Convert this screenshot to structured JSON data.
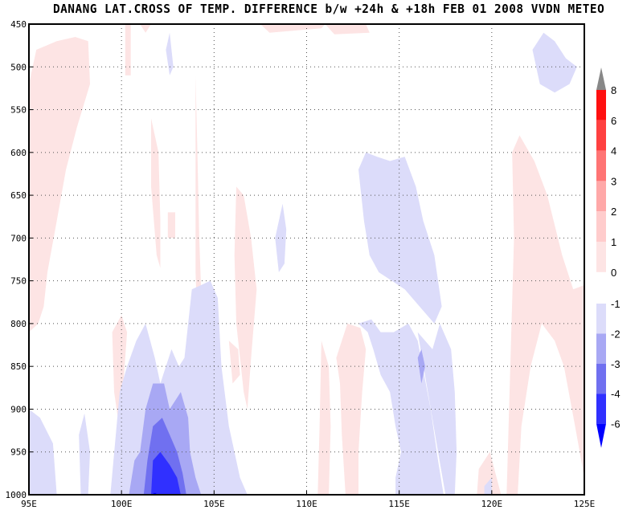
{
  "chart_data": {
    "type": "heatmap",
    "title": "DANANG LAT.CROSS OF TEMP. DIFFERENCE b/w +24h & +18h FEB 01 2008 VVDN METEO",
    "x_ticks": [
      "95E",
      "100E",
      "105E",
      "110E",
      "115E",
      "120E",
      "125E"
    ],
    "x_range": [
      95,
      125
    ],
    "y_ticks": [
      "450",
      "500",
      "550",
      "600",
      "650",
      "700",
      "750",
      "800",
      "850",
      "900",
      "950",
      "1000"
    ],
    "y_range": [
      450,
      1000
    ],
    "y_inverted": true,
    "grid": true,
    "levels_positive": [
      {
        "label": "0",
        "color": "#fde4e4"
      },
      {
        "label": "1",
        "color": "#ffcccc"
      },
      {
        "label": "2",
        "color": "#ffa8a8"
      },
      {
        "label": "3",
        "color": "#ff7474"
      },
      {
        "label": "4",
        "color": "#ff4040"
      },
      {
        "label": "6",
        "color": "#ff1010"
      },
      {
        "label": "8",
        "color": "#888888"
      }
    ],
    "levels_negative": [
      {
        "label": "-1",
        "color": "#dcdcfa"
      },
      {
        "label": "-2",
        "color": "#a8a8f4"
      },
      {
        "label": "-3",
        "color": "#7070f0"
      },
      {
        "label": "-4",
        "color": "#3030ff"
      },
      {
        "label": "-6",
        "color": "#0000ff"
      }
    ],
    "regions": [
      {
        "level": 0,
        "sign": "pos",
        "points": [
          [
            95,
            520
          ],
          [
            95.4,
            480
          ],
          [
            96.5,
            470
          ],
          [
            97.5,
            465
          ],
          [
            98.2,
            470
          ],
          [
            98.3,
            520
          ],
          [
            97.6,
            570
          ],
          [
            97,
            620
          ],
          [
            96.5,
            680
          ],
          [
            96,
            740
          ],
          [
            95.8,
            780
          ],
          [
            95.5,
            800
          ],
          [
            95,
            810
          ]
        ]
      },
      {
        "level": 0,
        "sign": "pos",
        "points": [
          [
            100.2,
            450
          ],
          [
            100.5,
            450
          ],
          [
            100.5,
            510
          ],
          [
            100.2,
            510
          ]
        ]
      },
      {
        "level": 0,
        "sign": "pos",
        "points": [
          [
            101,
            450
          ],
          [
            101.6,
            450
          ],
          [
            101.3,
            460
          ]
        ]
      },
      {
        "level": 0,
        "sign": "pos",
        "points": [
          [
            101.6,
            560
          ],
          [
            102,
            600
          ],
          [
            102.1,
            680
          ],
          [
            102.1,
            735
          ],
          [
            101.9,
            720
          ],
          [
            101.6,
            640
          ]
        ]
      },
      {
        "level": 0,
        "sign": "pos",
        "points": [
          [
            102.5,
            670
          ],
          [
            102.9,
            670
          ],
          [
            102.9,
            700
          ],
          [
            102.5,
            700
          ]
        ]
      },
      {
        "level": 0,
        "sign": "pos",
        "points": [
          [
            104,
            510
          ],
          [
            104.1,
            600
          ],
          [
            104.2,
            700
          ],
          [
            104.3,
            760
          ],
          [
            104.1,
            800
          ],
          [
            104,
            740
          ]
        ]
      },
      {
        "level": 0,
        "sign": "pos",
        "points": [
          [
            99.5,
            810
          ],
          [
            100,
            790
          ],
          [
            100.3,
            810
          ],
          [
            100.1,
            870
          ],
          [
            99.8,
            910
          ],
          [
            99.6,
            880
          ]
        ]
      },
      {
        "level": 0,
        "sign": "pos",
        "points": [
          [
            106.2,
            640
          ],
          [
            106.6,
            650
          ],
          [
            107,
            700
          ],
          [
            107.3,
            760
          ],
          [
            107,
            840
          ],
          [
            106.8,
            900
          ],
          [
            106.6,
            880
          ],
          [
            106.2,
            800
          ],
          [
            106.1,
            720
          ]
        ]
      },
      {
        "level": 0,
        "sign": "pos",
        "points": [
          [
            105.8,
            820
          ],
          [
            106.3,
            830
          ],
          [
            106.4,
            860
          ],
          [
            106,
            870
          ]
        ]
      },
      {
        "level": 0,
        "sign": "pos",
        "points": [
          [
            107.5,
            450
          ],
          [
            111,
            450
          ],
          [
            110.8,
            455
          ],
          [
            108,
            460
          ]
        ]
      },
      {
        "level": 0,
        "sign": "pos",
        "points": [
          [
            111,
            450
          ],
          [
            113.2,
            450
          ],
          [
            113.4,
            460
          ],
          [
            111.5,
            462
          ]
        ]
      },
      {
        "level": 0,
        "sign": "pos",
        "points": [
          [
            110.8,
            820
          ],
          [
            111.2,
            850
          ],
          [
            111.3,
            920
          ],
          [
            111.2,
            1000
          ],
          [
            110.6,
            1000
          ],
          [
            110.7,
            920
          ]
        ]
      },
      {
        "level": 0,
        "sign": "pos",
        "points": [
          [
            111.6,
            840
          ],
          [
            112.2,
            800
          ],
          [
            112.9,
            805
          ],
          [
            113.2,
            830
          ],
          [
            113,
            880
          ],
          [
            112.8,
            950
          ],
          [
            112.8,
            1000
          ],
          [
            112.1,
            1000
          ],
          [
            111.9,
            930
          ],
          [
            111.8,
            870
          ]
        ]
      },
      {
        "level": 0,
        "sign": "pos",
        "points": [
          [
            119.3,
            970
          ],
          [
            119.9,
            950
          ],
          [
            120.5,
            1000
          ],
          [
            119.2,
            1000
          ]
        ]
      },
      {
        "level": 0,
        "sign": "pos",
        "points": [
          [
            120.8,
            1000
          ],
          [
            121.2,
            700
          ],
          [
            121.1,
            600
          ],
          [
            121.5,
            580
          ],
          [
            122.3,
            610
          ],
          [
            123,
            650
          ],
          [
            123.8,
            720
          ],
          [
            124.4,
            760
          ],
          [
            125,
            755
          ],
          [
            125,
            980
          ],
          [
            124.5,
            920
          ],
          [
            123.9,
            850
          ],
          [
            123.4,
            820
          ],
          [
            122.7,
            800
          ],
          [
            122.1,
            850
          ],
          [
            121.6,
            920
          ],
          [
            121.4,
            1000
          ]
        ]
      },
      {
        "level": -1,
        "sign": "neg",
        "points": [
          [
            95,
            900
          ],
          [
            95.6,
            910
          ],
          [
            96.3,
            940
          ],
          [
            96.5,
            1000
          ],
          [
            95,
            1000
          ]
        ]
      },
      {
        "level": -1,
        "sign": "neg",
        "points": [
          [
            97.7,
            930
          ],
          [
            98,
            905
          ],
          [
            98.3,
            950
          ],
          [
            98.2,
            1000
          ],
          [
            97.8,
            1000
          ]
        ]
      },
      {
        "level": -1,
        "sign": "neg",
        "points": [
          [
            102.6,
            460
          ],
          [
            102.8,
            500
          ],
          [
            102.6,
            510
          ],
          [
            102.4,
            480
          ]
        ]
      },
      {
        "level": -1,
        "sign": "neg",
        "points": [
          [
            99.4,
            1000
          ],
          [
            99.9,
            880
          ],
          [
            100.3,
            850
          ],
          [
            100.8,
            820
          ],
          [
            101.3,
            800
          ],
          [
            101.8,
            840
          ],
          [
            102.1,
            870
          ],
          [
            102.7,
            830
          ],
          [
            103.1,
            850
          ],
          [
            103.4,
            840
          ],
          [
            103.8,
            760
          ],
          [
            104.8,
            750
          ],
          [
            105.2,
            770
          ],
          [
            105.4,
            850
          ],
          [
            105.8,
            920
          ],
          [
            106.4,
            980
          ],
          [
            106.8,
            1000
          ]
        ]
      },
      {
        "level": -1,
        "sign": "neg",
        "points": [
          [
            108.3,
            700
          ],
          [
            108.7,
            660
          ],
          [
            108.9,
            690
          ],
          [
            108.8,
            730
          ],
          [
            108.5,
            740
          ]
        ]
      },
      {
        "level": -1,
        "sign": "neg",
        "points": [
          [
            112.8,
            800
          ],
          [
            113.5,
            795
          ],
          [
            114,
            810
          ],
          [
            114.7,
            810
          ],
          [
            115.5,
            800
          ],
          [
            116,
            820
          ],
          [
            116.7,
            900
          ],
          [
            117.1,
            960
          ],
          [
            117.4,
            1000
          ],
          [
            114.8,
            1000
          ],
          [
            114.8,
            980
          ],
          [
            115.1,
            950
          ],
          [
            114.8,
            920
          ],
          [
            114.5,
            880
          ],
          [
            114,
            860
          ],
          [
            113.6,
            830
          ],
          [
            113.3,
            810
          ]
        ]
      },
      {
        "level": -1,
        "sign": "neg",
        "points": [
          [
            116,
            810
          ],
          [
            116.8,
            830
          ],
          [
            117.2,
            800
          ],
          [
            117.8,
            830
          ],
          [
            118,
            880
          ],
          [
            118.1,
            950
          ],
          [
            118,
            1000
          ],
          [
            117.5,
            1000
          ],
          [
            117.1,
            950
          ]
        ]
      },
      {
        "level": -1,
        "sign": "neg",
        "points": [
          [
            119.6,
            990
          ],
          [
            120,
            980
          ],
          [
            120,
            1000
          ],
          [
            119.6,
            1000
          ]
        ]
      },
      {
        "level": -1,
        "sign": "neg",
        "points": [
          [
            122.2,
            480
          ],
          [
            122.8,
            460
          ],
          [
            123.4,
            470
          ],
          [
            124,
            490
          ],
          [
            124.6,
            500
          ],
          [
            124.2,
            520
          ],
          [
            123.4,
            530
          ],
          [
            122.6,
            520
          ]
        ]
      },
      {
        "level": -1,
        "sign": "neg",
        "points": [
          [
            112.8,
            620
          ],
          [
            113.2,
            600
          ],
          [
            113.8,
            605
          ],
          [
            114.5,
            610
          ],
          [
            115.3,
            605
          ],
          [
            115.9,
            640
          ],
          [
            116.3,
            680
          ],
          [
            116.9,
            720
          ],
          [
            117.3,
            780
          ],
          [
            116.9,
            800
          ],
          [
            116.1,
            780
          ],
          [
            115.3,
            760
          ],
          [
            114.6,
            750
          ],
          [
            113.9,
            740
          ],
          [
            113.4,
            720
          ],
          [
            113.1,
            680
          ]
        ]
      },
      {
        "level": -2,
        "sign": "neg",
        "points": [
          [
            100.4,
            1000
          ],
          [
            100.7,
            960
          ],
          [
            101,
            950
          ],
          [
            101.3,
            900
          ],
          [
            101.7,
            870
          ],
          [
            102.3,
            870
          ],
          [
            102.6,
            900
          ],
          [
            103.2,
            880
          ],
          [
            103.6,
            910
          ],
          [
            103.7,
            950
          ],
          [
            104,
            980
          ],
          [
            104.3,
            1000
          ]
        ]
      },
      {
        "level": -2,
        "sign": "neg",
        "points": [
          [
            116,
            840
          ],
          [
            116.2,
            830
          ],
          [
            116.4,
            850
          ],
          [
            116.2,
            870
          ]
        ]
      },
      {
        "level": -3,
        "sign": "neg",
        "points": [
          [
            101.2,
            1000
          ],
          [
            101.4,
            960
          ],
          [
            101.7,
            920
          ],
          [
            102.2,
            910
          ],
          [
            102.6,
            930
          ],
          [
            103,
            950
          ],
          [
            103.3,
            975
          ],
          [
            103.5,
            1000
          ]
        ]
      },
      {
        "level": -4,
        "sign": "neg",
        "points": [
          [
            101.6,
            1000
          ],
          [
            101.7,
            960
          ],
          [
            102.1,
            950
          ],
          [
            102.6,
            965
          ],
          [
            103,
            980
          ],
          [
            103.2,
            1000
          ]
        ]
      },
      {
        "level": -6,
        "sign": "neg",
        "points": [
          [
            101.7,
            998
          ],
          [
            101.9,
            998
          ],
          [
            101.8,
            1000
          ]
        ]
      }
    ]
  }
}
